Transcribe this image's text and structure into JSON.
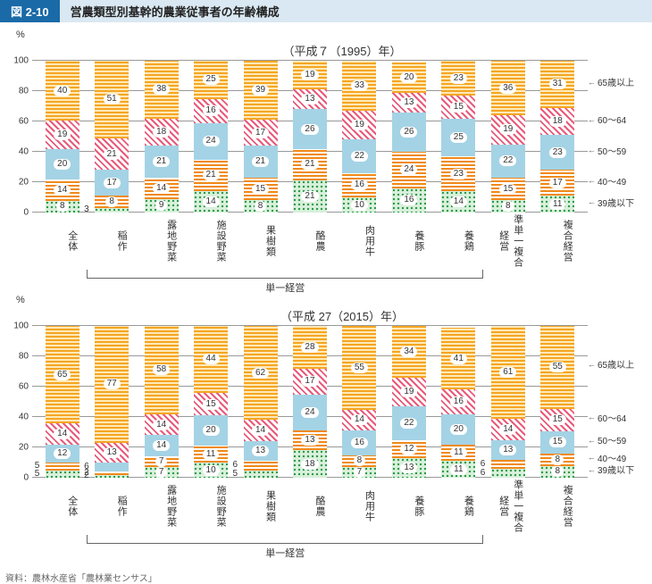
{
  "figure_number": "図 2-10",
  "figure_title": "営農類型別基幹的農業従事者の年齢構成",
  "source": "資料：農林水産省「農林業センサス」",
  "y_unit": "%",
  "y_ticks": [
    0,
    20,
    40,
    60,
    80,
    100
  ],
  "colors": {
    "header_bg": "#1a6aa8",
    "title_bg": "#d9e8f2",
    "grid": "#999999"
  },
  "age_groups": [
    {
      "key": "u39",
      "label": "39歳以下",
      "pattern": "p-dots"
    },
    {
      "key": "a4049",
      "label": "40～49",
      "pattern": "p-hatch-o"
    },
    {
      "key": "a5059",
      "label": "50～59",
      "pattern": "p-blue"
    },
    {
      "key": "a6064",
      "label": "60～64",
      "pattern": "p-hatch-r"
    },
    {
      "key": "a65",
      "label": "65歳以上",
      "pattern": "p-hatch-y"
    }
  ],
  "categories": [
    "全体",
    "稲作",
    "露地野菜",
    "施設野菜",
    "果樹類",
    "酪農",
    "肉用牛",
    "養豚",
    "養鶏",
    "準単一\n複合経営",
    "複合経営"
  ],
  "bracket": {
    "from": 1,
    "to": 8,
    "label": "単一経営"
  },
  "charts": [
    {
      "title": "（平成７（1995）年）",
      "data": [
        {
          "u39": 8,
          "a4049": 14,
          "a5059": 20,
          "a6064": 19,
          "a65": 40
        },
        {
          "u39": 3,
          "a4049": 8,
          "a5059": 17,
          "a6064": 21,
          "a65": 51
        },
        {
          "u39": 9,
          "a4049": 14,
          "a5059": 21,
          "a6064": 18,
          "a65": 38
        },
        {
          "u39": 14,
          "a4049": 21,
          "a5059": 24,
          "a6064": 16,
          "a65": 25
        },
        {
          "u39": 8,
          "a4049": 15,
          "a5059": 21,
          "a6064": 17,
          "a65": 39
        },
        {
          "u39": 21,
          "a4049": 21,
          "a5059": 26,
          "a6064": 13,
          "a65": 19
        },
        {
          "u39": 10,
          "a4049": 16,
          "a5059": 22,
          "a6064": 19,
          "a65": 33
        },
        {
          "u39": 16,
          "a4049": 24,
          "a5059": 26,
          "a6064": 13,
          "a65": 20
        },
        {
          "u39": 14,
          "a4049": 23,
          "a5059": 25,
          "a6064": 15,
          "a65": 23
        },
        {
          "u39": 8,
          "a4049": 15,
          "a5059": 22,
          "a6064": 19,
          "a65": 36
        },
        {
          "u39": 11,
          "a4049": 17,
          "a5059": 23,
          "a6064": 18,
          "a65": 31
        }
      ]
    },
    {
      "title": "（平成 27（2015）年）",
      "data": [
        {
          "u39": 5,
          "a4049": 5,
          "a5059": 12,
          "a6064": 14,
          "a65": 65
        },
        {
          "u39": 2,
          "a4049": 2,
          "a5059": 6,
          "a6064": 13,
          "a65": 77
        },
        {
          "u39": 7,
          "a4049": 7,
          "a5059": 14,
          "a6064": 14,
          "a65": 58
        },
        {
          "u39": 10,
          "a4049": 11,
          "a5059": 20,
          "a6064": 15,
          "a65": 44
        },
        {
          "u39": 5,
          "a4049": 6,
          "a5059": 13,
          "a6064": 14,
          "a65": 62
        },
        {
          "u39": 18,
          "a4049": 13,
          "a5059": 24,
          "a6064": 17,
          "a65": 28
        },
        {
          "u39": 7,
          "a4049": 8,
          "a5059": 16,
          "a6064": 14,
          "a65": 55
        },
        {
          "u39": 13,
          "a4049": 12,
          "a5059": 22,
          "a6064": 19,
          "a65": 34
        },
        {
          "u39": 11,
          "a4049": 11,
          "a5059": 20,
          "a6064": 16,
          "a65": 41
        },
        {
          "u39": 6,
          "a4049": 6,
          "a5059": 13,
          "a6064": 14,
          "a65": 61
        },
        {
          "u39": 8,
          "a4049": 8,
          "a5059": 15,
          "a6064": 15,
          "a65": 55
        }
      ]
    }
  ]
}
